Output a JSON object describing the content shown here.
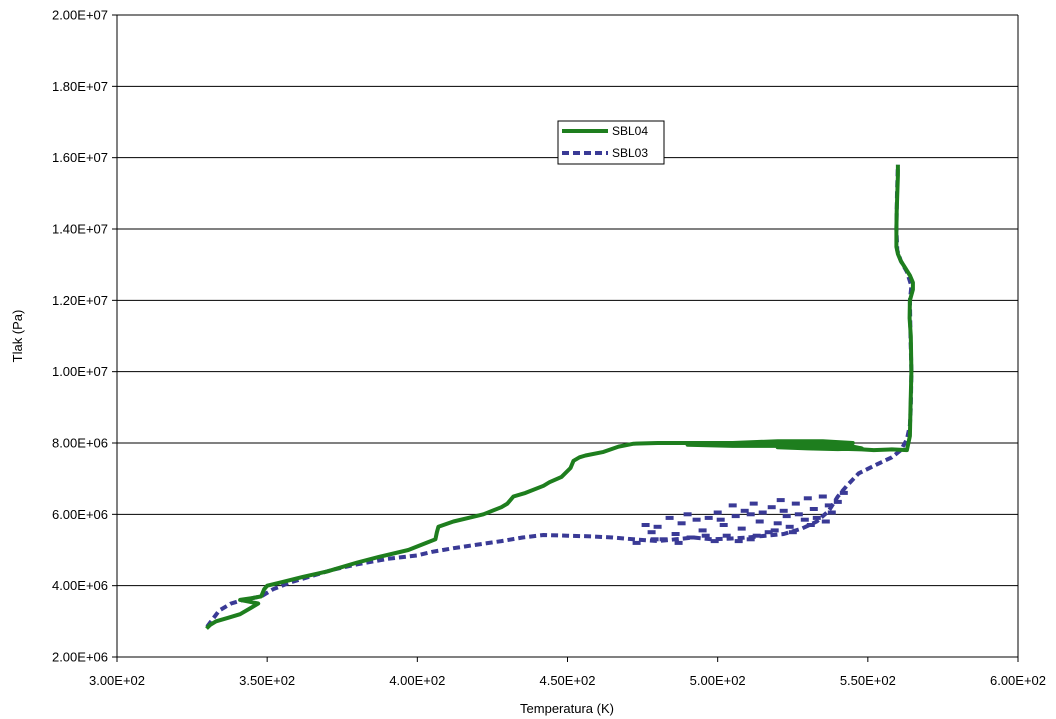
{
  "chart_data": {
    "type": "line",
    "title": "",
    "xlabel": "Temperatura (K)",
    "ylabel": "Tlak (Pa)",
    "xlim": [
      300,
      600
    ],
    "ylim": [
      2000000,
      20000000
    ],
    "x_ticks": [
      300,
      350,
      400,
      450,
      500,
      550,
      600
    ],
    "x_tick_labels": [
      "3.00E+02",
      "3.50E+02",
      "4.00E+02",
      "4.50E+02",
      "5.00E+02",
      "5.50E+02",
      "6.00E+02"
    ],
    "y_ticks": [
      2000000,
      4000000,
      6000000,
      8000000,
      10000000,
      12000000,
      14000000,
      16000000,
      18000000,
      20000000
    ],
    "y_tick_labels": [
      "2.00E+06",
      "4.00E+06",
      "6.00E+06",
      "8.00E+06",
      "1.00E+07",
      "1.20E+07",
      "1.40E+07",
      "1.60E+07",
      "1.80E+07",
      "2.00E+07"
    ],
    "grid": "horizontal",
    "legend_position": "top-center",
    "series": [
      {
        "name": "SBL04",
        "color": "#1e7e1e",
        "style": "solid",
        "points": [
          [
            329.8,
            2800000
          ],
          [
            331,
            2900000
          ],
          [
            333,
            3000000
          ],
          [
            337,
            3100000
          ],
          [
            341,
            3200000
          ],
          [
            345,
            3400000
          ],
          [
            347,
            3500000
          ],
          [
            344,
            3550000
          ],
          [
            341,
            3600000
          ],
          [
            345,
            3650000
          ],
          [
            348,
            3700000
          ],
          [
            349,
            3900000
          ],
          [
            350,
            4000000
          ],
          [
            355,
            4100000
          ],
          [
            362,
            4250000
          ],
          [
            370,
            4400000
          ],
          [
            380,
            4650000
          ],
          [
            387,
            4800000
          ],
          [
            397,
            5000000
          ],
          [
            403,
            5200000
          ],
          [
            406,
            5300000
          ],
          [
            406.5,
            5500000
          ],
          [
            407,
            5650000
          ],
          [
            412,
            5800000
          ],
          [
            417,
            5900000
          ],
          [
            422,
            6000000
          ],
          [
            428,
            6200000
          ],
          [
            430,
            6300000
          ],
          [
            431,
            6400000
          ],
          [
            432,
            6500000
          ],
          [
            436,
            6600000
          ],
          [
            442,
            6800000
          ],
          [
            444,
            6900000
          ],
          [
            448,
            7050000
          ],
          [
            451,
            7300000
          ],
          [
            452,
            7500000
          ],
          [
            454,
            7600000
          ],
          [
            456,
            7650000
          ],
          [
            462,
            7750000
          ],
          [
            467,
            7900000
          ],
          [
            472,
            7980000
          ],
          [
            480,
            8000000
          ],
          [
            492,
            8000000
          ],
          [
            505,
            8000000
          ],
          [
            520,
            8050000
          ],
          [
            535,
            8050000
          ],
          [
            545,
            8000000
          ],
          [
            540,
            7960000
          ],
          [
            530,
            7960000
          ],
          [
            515,
            7980000
          ],
          [
            500,
            7980000
          ],
          [
            490,
            7950000
          ],
          [
            505,
            7920000
          ],
          [
            520,
            7920000
          ],
          [
            535,
            7900000
          ],
          [
            545,
            7900000
          ],
          [
            548,
            7850000
          ],
          [
            540,
            7830000
          ],
          [
            530,
            7850000
          ],
          [
            520,
            7880000
          ],
          [
            532,
            7860000
          ],
          [
            548,
            7820000
          ],
          [
            552,
            7800000
          ],
          [
            558,
            7820000
          ],
          [
            563,
            7800000
          ],
          [
            564,
            8200000
          ],
          [
            564.2,
            9000000
          ],
          [
            564.5,
            10000000
          ],
          [
            564.3,
            11000000
          ],
          [
            563.9,
            11500000
          ],
          [
            564,
            12000000
          ],
          [
            565,
            12300000
          ],
          [
            565,
            12500000
          ],
          [
            564,
            12700000
          ],
          [
            562.5,
            12900000
          ],
          [
            561,
            13100000
          ],
          [
            560,
            13300000
          ],
          [
            559.5,
            13500000
          ],
          [
            559.5,
            14000000
          ],
          [
            559.6,
            14500000
          ],
          [
            559.8,
            15000000
          ],
          [
            560,
            15500000
          ],
          [
            560,
            15800000
          ]
        ]
      },
      {
        "name": "SBL03",
        "color": "#3a3a96",
        "style": "dashed",
        "points": [
          [
            330,
            2850000
          ],
          [
            334,
            3300000
          ],
          [
            338,
            3500000
          ],
          [
            342,
            3600000
          ],
          [
            348,
            3700000
          ],
          [
            352,
            3900000
          ],
          [
            358,
            4100000
          ],
          [
            366,
            4300000
          ],
          [
            372,
            4450000
          ],
          [
            380,
            4600000
          ],
          [
            390,
            4750000
          ],
          [
            400,
            4850000
          ],
          [
            405,
            4950000
          ],
          [
            412,
            5050000
          ],
          [
            420,
            5150000
          ],
          [
            428,
            5250000
          ],
          [
            435,
            5350000
          ],
          [
            442,
            5420000
          ],
          [
            450,
            5400000
          ],
          [
            458,
            5380000
          ],
          [
            465,
            5350000
          ],
          [
            472,
            5300000
          ],
          [
            480,
            5250000
          ],
          [
            486,
            5300000
          ],
          [
            492,
            5350000
          ],
          [
            498,
            5300000
          ],
          [
            504,
            5320000
          ],
          [
            510,
            5350000
          ],
          [
            516,
            5400000
          ],
          [
            522,
            5450000
          ],
          [
            528,
            5600000
          ],
          [
            533,
            5800000
          ],
          [
            537,
            6100000
          ],
          [
            540,
            6500000
          ],
          [
            543,
            6800000
          ],
          [
            547,
            7150000
          ],
          [
            553,
            7400000
          ],
          [
            558,
            7600000
          ],
          [
            561,
            7800000
          ],
          [
            563,
            8100000
          ],
          [
            564,
            8500000
          ],
          [
            564.3,
            9000000
          ],
          [
            564.5,
            10000000
          ],
          [
            564.2,
            11000000
          ],
          [
            564,
            12000000
          ],
          [
            564.5,
            12400000
          ],
          [
            563,
            12800000
          ],
          [
            561,
            13100000
          ],
          [
            559.8,
            13400000
          ],
          [
            559.5,
            14000000
          ],
          [
            559.7,
            15000000
          ],
          [
            560,
            15800000
          ]
        ],
        "scatter_cloud": [
          [
            473,
            5200000
          ],
          [
            476,
            5700000
          ],
          [
            478,
            5500000
          ],
          [
            480,
            5650000
          ],
          [
            482,
            5300000
          ],
          [
            484,
            5900000
          ],
          [
            486,
            5450000
          ],
          [
            488,
            5750000
          ],
          [
            490,
            6000000
          ],
          [
            491,
            5350000
          ],
          [
            493,
            5850000
          ],
          [
            495,
            5550000
          ],
          [
            497,
            5900000
          ],
          [
            499,
            5250000
          ],
          [
            500,
            6050000
          ],
          [
            502,
            5700000
          ],
          [
            503,
            5400000
          ],
          [
            505,
            6250000
          ],
          [
            506,
            5950000
          ],
          [
            508,
            5600000
          ],
          [
            509,
            6100000
          ],
          [
            511,
            5300000
          ],
          [
            512,
            6300000
          ],
          [
            514,
            5800000
          ],
          [
            515,
            6050000
          ],
          [
            517,
            5500000
          ],
          [
            518,
            6200000
          ],
          [
            520,
            5750000
          ],
          [
            521,
            6400000
          ],
          [
            523,
            5950000
          ],
          [
            524,
            5650000
          ],
          [
            526,
            6300000
          ],
          [
            527,
            6000000
          ],
          [
            529,
            5850000
          ],
          [
            530,
            6450000
          ],
          [
            532,
            6150000
          ],
          [
            533,
            5900000
          ],
          [
            535,
            6500000
          ],
          [
            537,
            6250000
          ],
          [
            538,
            6050000
          ],
          [
            540,
            6350000
          ],
          [
            542,
            6600000
          ],
          [
            507,
            5250000
          ],
          [
            513,
            5400000
          ],
          [
            519,
            5550000
          ],
          [
            525,
            5500000
          ],
          [
            531,
            5700000
          ],
          [
            536,
            5800000
          ],
          [
            496,
            5400000
          ],
          [
            487,
            5200000
          ],
          [
            479,
            5300000
          ],
          [
            501,
            5850000
          ],
          [
            511,
            6000000
          ],
          [
            522,
            6100000
          ]
        ]
      }
    ]
  }
}
